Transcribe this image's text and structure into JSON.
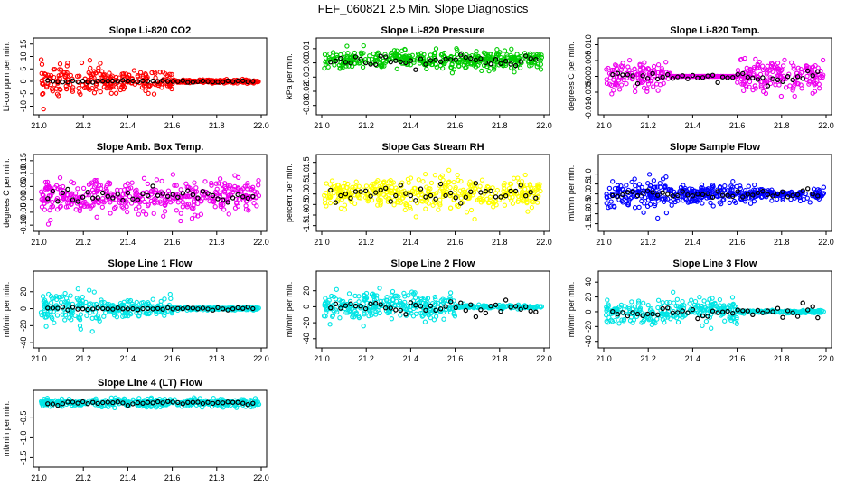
{
  "page_title": "FEF_060821  2.5 Min. Slope Diagnostics",
  "chart_data": [
    {
      "type": "scatter",
      "title": "Slope Li-820 CO2",
      "ylabel": "Li-cor ppm per min.",
      "color": "#ff0000",
      "xlim": [
        21.0,
        22.0
      ],
      "ylim": [
        -12,
        16
      ],
      "yticks": [
        -10,
        -5,
        0,
        5,
        10,
        15
      ],
      "ytick_labels": [
        "-10",
        "-5",
        "0",
        "5",
        "10",
        "15"
      ],
      "xticks": [
        21.0,
        21.2,
        21.4,
        21.6,
        21.8,
        22.0
      ],
      "xtick_labels": [
        "21.0",
        "21.2",
        "21.4",
        "21.6",
        "21.8",
        "22.0"
      ],
      "noise": [
        4,
        2.5,
        0.4
      ],
      "black_noise": 0.25,
      "center": 0
    },
    {
      "type": "scatter",
      "title": "Slope Li-820 Pressure",
      "ylabel": "kPa per min.",
      "color": "#00cc00",
      "xlim": [
        21.0,
        22.0
      ],
      "ylim": [
        -0.034,
        0.015
      ],
      "yticks": [
        -0.03,
        -0.02,
        -0.01,
        0.0,
        0.01
      ],
      "ytick_labels": [
        "-0.03",
        "-0.02",
        "-0.01",
        "0.00",
        "0.01"
      ],
      "xticks": [
        21.0,
        21.2,
        21.4,
        21.6,
        21.8,
        22.0
      ],
      "xtick_labels": [
        "21.0",
        "21.2",
        "21.4",
        "21.6",
        "21.8",
        "22.0"
      ],
      "noise": [
        0.004,
        0.004,
        0.004
      ],
      "black_noise": 0.003,
      "center": 0.002
    },
    {
      "type": "scatter",
      "title": "Slope Li-820 Temp.",
      "ylabel": "degrees C per min.",
      "color": "#ee00ee",
      "xlim": [
        21.0,
        22.0
      ],
      "ylim": [
        -0.011,
        0.011
      ],
      "yticks": [
        -0.01,
        -0.005,
        0.0,
        0.005,
        0.01
      ],
      "ytick_labels": [
        "-0.010",
        "-0.005",
        "0.000",
        "0.005",
        "0.010"
      ],
      "xticks": [
        21.0,
        21.2,
        21.4,
        21.6,
        21.8,
        22.0
      ],
      "xtick_labels": [
        "21.0",
        "21.2",
        "21.4",
        "21.6",
        "21.8",
        "22.0"
      ],
      "noise": [
        0.003,
        0.0,
        0.003
      ],
      "black_noise": 0.0012,
      "center": 0
    },
    {
      "type": "scatter",
      "title": "Slope Amb. Box Temp.",
      "ylabel": "degrees C per min.",
      "color": "#ee00ee",
      "xlim": [
        21.0,
        22.0
      ],
      "ylim": [
        -0.11,
        0.16
      ],
      "yticks": [
        -0.1,
        -0.05,
        0.0,
        0.05,
        0.1,
        0.15
      ],
      "ytick_labels": [
        "-0.10",
        "-0.05",
        "0.00",
        "0.05",
        "0.10",
        "0.15"
      ],
      "xticks": [
        21.0,
        21.2,
        21.4,
        21.6,
        21.8,
        22.0
      ],
      "xtick_labels": [
        "21.0",
        "21.2",
        "21.4",
        "21.6",
        "21.8",
        "22.0"
      ],
      "noise": [
        0.04,
        0.04,
        0.04
      ],
      "black_noise": 0.02,
      "center": 0.01
    },
    {
      "type": "scatter",
      "title": "Slope Gas Stream RH",
      "ylabel": "percent per min.",
      "color": "#ffff00",
      "xlim": [
        21.0,
        22.0
      ],
      "ylim": [
        -1.6,
        1.7
      ],
      "yticks": [
        -1.5,
        -1.0,
        -0.5,
        0.0,
        0.5,
        1.0,
        1.5
      ],
      "ytick_labels": [
        "-1.5",
        "-1.0",
        "-0.5",
        "0.0",
        "0.5",
        "1.0",
        "1.5"
      ],
      "xticks": [
        21.0,
        21.2,
        21.4,
        21.6,
        21.8,
        22.0
      ],
      "xtick_labels": [
        "21.0",
        "21.2",
        "21.4",
        "21.6",
        "21.8",
        "22.0"
      ],
      "noise": [
        0.45,
        0.45,
        0.45
      ],
      "black_noise": 0.3,
      "center": 0
    },
    {
      "type": "scatter",
      "title": "Slope Sample Flow",
      "ylabel": "ml/min per min.",
      "color": "#0000ff",
      "xlim": [
        21.0,
        22.0
      ],
      "ylim": [
        -1.7,
        1.8
      ],
      "yticks": [
        -1.5,
        -1.0,
        -0.5,
        0.0,
        0.5,
        1.0
      ],
      "ytick_labels": [
        "-1.5",
        "-1.0",
        "-0.5",
        "0.0",
        "0.5",
        "1.0"
      ],
      "xticks": [
        21.0,
        21.2,
        21.4,
        21.6,
        21.8,
        22.0
      ],
      "xtick_labels": [
        "21.0",
        "21.2",
        "21.4",
        "21.6",
        "21.8",
        "22.0"
      ],
      "noise": [
        0.45,
        0.3,
        0.2
      ],
      "black_noise": 0.12,
      "center": 0
    },
    {
      "type": "scatter",
      "title": "Slope Line 1 Flow",
      "ylabel": "ml/min per min.",
      "color": "#00e5e5",
      "xlim": [
        21.0,
        22.0
      ],
      "ylim": [
        -42,
        40
      ],
      "yticks": [
        -40,
        -20,
        0,
        20
      ],
      "ytick_labels": [
        "-40",
        "-20",
        "0",
        "20"
      ],
      "xticks": [
        21.0,
        21.2,
        21.4,
        21.6,
        21.8,
        22.0
      ],
      "xtick_labels": [
        "21.0",
        "21.2",
        "21.4",
        "21.6",
        "21.8",
        "22.0"
      ],
      "noise": [
        12,
        6,
        1
      ],
      "black_noise": 1,
      "center": 0
    },
    {
      "type": "scatter",
      "title": "Slope Line 2 Flow",
      "ylabel": "ml/min per min.",
      "color": "#00e5e5",
      "xlim": [
        21.0,
        22.0
      ],
      "ylim": [
        -47,
        40
      ],
      "yticks": [
        -40,
        -20,
        0,
        20
      ],
      "ytick_labels": [
        "-40",
        "-20",
        "0",
        "20"
      ],
      "xticks": [
        21.0,
        21.2,
        21.4,
        21.6,
        21.8,
        22.0
      ],
      "xtick_labels": [
        "21.0",
        "21.2",
        "21.4",
        "21.6",
        "21.8",
        "22.0"
      ],
      "noise": [
        12,
        10,
        1.2
      ],
      "black_noise": 5,
      "center": 0
    },
    {
      "type": "scatter",
      "title": "Slope Line 3 Flow",
      "ylabel": "ml/min per min.",
      "color": "#00e5e5",
      "xlim": [
        21.0,
        22.0
      ],
      "ylim": [
        -44,
        50
      ],
      "yticks": [
        -40,
        -20,
        0,
        20,
        40
      ],
      "ytick_labels": [
        "-40",
        "-20",
        "0",
        "20",
        "40"
      ],
      "xticks": [
        21.0,
        21.2,
        21.4,
        21.6,
        21.8,
        22.0
      ],
      "xtick_labels": [
        "21.0",
        "21.2",
        "21.4",
        "21.6",
        "21.8",
        "22.0"
      ],
      "noise": [
        12,
        10,
        1.2
      ],
      "black_noise": 5,
      "center": 0
    },
    {
      "type": "scatter",
      "title": "Slope Line 4 (LT) Flow",
      "ylabel": "ml/min per min.",
      "color": "#00e5e5",
      "xlim": [
        21.0,
        22.0
      ],
      "ylim": [
        -1.65,
        0.1
      ],
      "yticks": [
        -1.5,
        -1.0,
        -0.5
      ],
      "ytick_labels": [
        "-1.5",
        "-1.0",
        "-0.5"
      ],
      "xticks": [
        21.0,
        21.2,
        21.4,
        21.6,
        21.8,
        22.0
      ],
      "xtick_labels": [
        "21.0",
        "21.2",
        "21.4",
        "21.6",
        "21.8",
        "22.0"
      ],
      "noise": [
        0.06,
        0.06,
        0.06
      ],
      "black_noise": 0.03,
      "center": -0.12
    }
  ]
}
